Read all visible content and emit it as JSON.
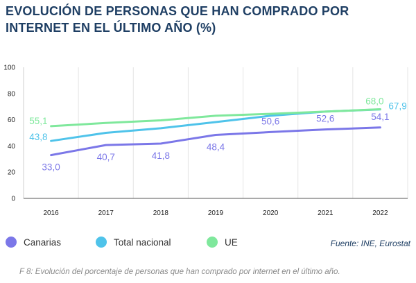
{
  "chart_data": {
    "type": "line",
    "title": "EVOLUCIÓN DE PERSONAS QUE HAN COMPRADO POR INTERNET EN EL ÚLTIMO AÑO (%)",
    "categories": [
      "2016",
      "2017",
      "2018",
      "2019",
      "2020",
      "2021",
      "2022"
    ],
    "ylim": [
      0,
      100
    ],
    "yticks": [
      0,
      20,
      40,
      60,
      80,
      100
    ],
    "grid": "vertical",
    "legend_position": "bottom",
    "series": [
      {
        "name": "Canarias",
        "color": "#7b77e8",
        "values": [
          33.0,
          40.7,
          41.8,
          48.4,
          50.6,
          52.6,
          54.1
        ],
        "labels": [
          "33,0",
          "40,7",
          "41,8",
          "48,4",
          "50,6",
          "52,6",
          "54,1"
        ],
        "labeled_points": [
          0,
          1,
          2,
          3,
          4,
          5,
          6
        ]
      },
      {
        "name": "Total nacional",
        "color": "#4fc3ea",
        "values": [
          43.8,
          50.0,
          53.5,
          58.2,
          63.0,
          66.2,
          67.9
        ],
        "labels": [
          "43,8",
          "",
          "",
          "",
          "",
          "",
          "67,9"
        ],
        "labeled_points": [
          0,
          6
        ]
      },
      {
        "name": "UE",
        "color": "#7fe89c",
        "values": [
          55.1,
          57.5,
          59.5,
          63.0,
          64.5,
          66.2,
          68.0
        ],
        "labels": [
          "55,1",
          "",
          "",
          "",
          "",
          "",
          "68,0"
        ],
        "labeled_points": [
          0,
          6
        ]
      }
    ]
  },
  "source": "Fuente: INE, Eurostat",
  "caption": "F 8: Evolución del porcentaje de personas que han comprado por internet en el último año."
}
